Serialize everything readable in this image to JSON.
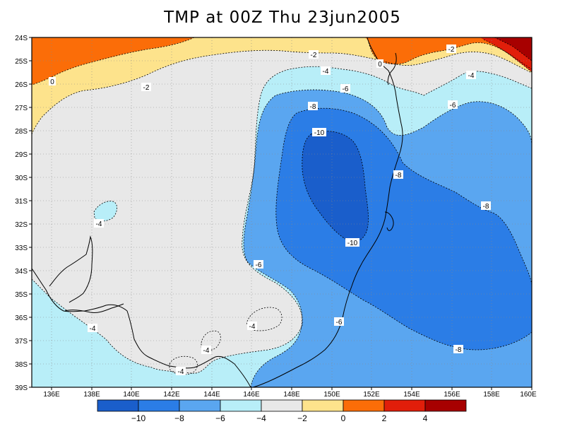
{
  "title": "TMP at 00Z Thu 23jun2005",
  "colors": {
    "minus12_minus10": "#1a5ecb",
    "minus10_minus8": "#2b7de6",
    "minus8_minus6": "#5aa6f0",
    "minus6_minus4": "#b8eef8",
    "minus4_minus2": "#e8e8e8",
    "minus2_0": "#fde38c",
    "0_2": "#fb6d08",
    "2_4": "#e11e0a",
    "4_6": "#a70000"
  },
  "y_axis_labels": [
    "24S",
    "25S",
    "26S",
    "27S",
    "28S",
    "29S",
    "30S",
    "31S",
    "32S",
    "33S",
    "34S",
    "35S",
    "36S",
    "37S",
    "38S",
    "39S"
  ],
  "x_axis_labels": [
    "136E",
    "138E",
    "140E",
    "142E",
    "144E",
    "146E",
    "148E",
    "150E",
    "152E",
    "154E",
    "156E",
    "158E",
    "160E"
  ],
  "contour_labels": {
    "c0_a": "0",
    "c0_b": "0",
    "cm2_a": "-2",
    "cm2_b": "-2",
    "cm2_c": "-2",
    "cm4_a": "-4",
    "cm4_b": "-4",
    "cm4_c": "-4",
    "cm4_d": "-4",
    "cm4_e": "-4",
    "cm4_f": "-4",
    "cm4_g": "-4",
    "cm6_a": "-6",
    "cm6_b": "-6",
    "cm6_c": "-6",
    "cm6_d": "-6",
    "cm8_a": "-8",
    "cm8_b": "-8",
    "cm8_c": "-8",
    "cm8_d": "-8",
    "cm10_a": "-10",
    "cm10_b": "-10"
  },
  "colorbar_labels": [
    "−10",
    "−8",
    "−6",
    "−4",
    "−2",
    "0",
    "2",
    "4"
  ]
}
